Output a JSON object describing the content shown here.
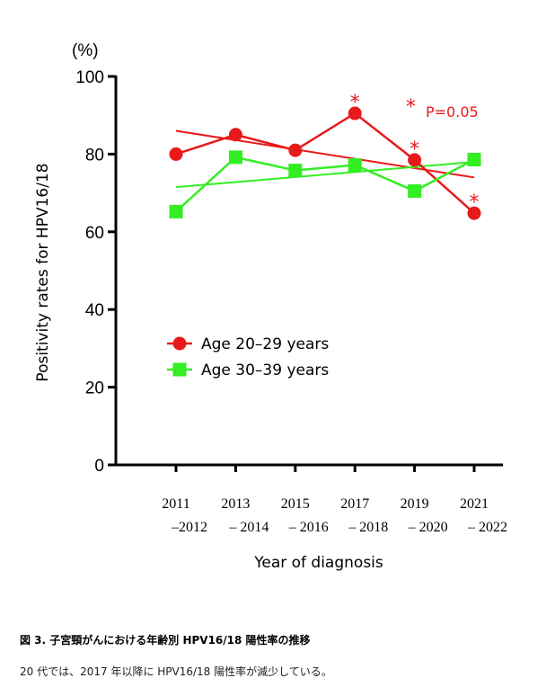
{
  "chart_data": {
    "type": "line",
    "unit_label": "(%)",
    "ylabel": "Positivity rates for HPV16/18",
    "xlabel": "Year of diagnosis",
    "ylim": [
      0,
      100
    ],
    "yticks": [
      0,
      20,
      40,
      60,
      80,
      100
    ],
    "categories": [
      {
        "line1": "2011",
        "line2": "–2012"
      },
      {
        "line1": "2013",
        "line2": "– 2014"
      },
      {
        "line1": "2015",
        "line2": "– 2016"
      },
      {
        "line1": "2017",
        "line2": "– 2018"
      },
      {
        "line1": "2019",
        "line2": "– 2020"
      },
      {
        "line1": "2021",
        "line2": "– 2022"
      }
    ],
    "series": [
      {
        "name": "Age 20–29 years",
        "color": "#e8191a",
        "marker": "circle",
        "values": [
          80,
          85,
          81,
          90.5,
          78.5,
          64.8
        ],
        "significant": [
          false,
          false,
          false,
          true,
          true,
          true
        ],
        "trend": [
          86,
          74
        ]
      },
      {
        "name": "Age 30–39 years",
        "color": "#33ee22",
        "marker": "square",
        "values": [
          65.2,
          79.2,
          75.8,
          77.2,
          70.5,
          78.6
        ],
        "significant": [
          false,
          false,
          false,
          false,
          false,
          false
        ],
        "trend": [
          71.5,
          78
        ]
      }
    ],
    "significance": {
      "symbol": "*",
      "label": "P=0.05",
      "color": "#e8191a"
    },
    "legend": "center-left"
  },
  "caption": {
    "title": "図 3. 子宮頸がんにおける年齢別 HPV16/18 陽性率の推移",
    "text": "20 代では、2017 年以降に HPV16/18 陽性率が減少している。"
  }
}
